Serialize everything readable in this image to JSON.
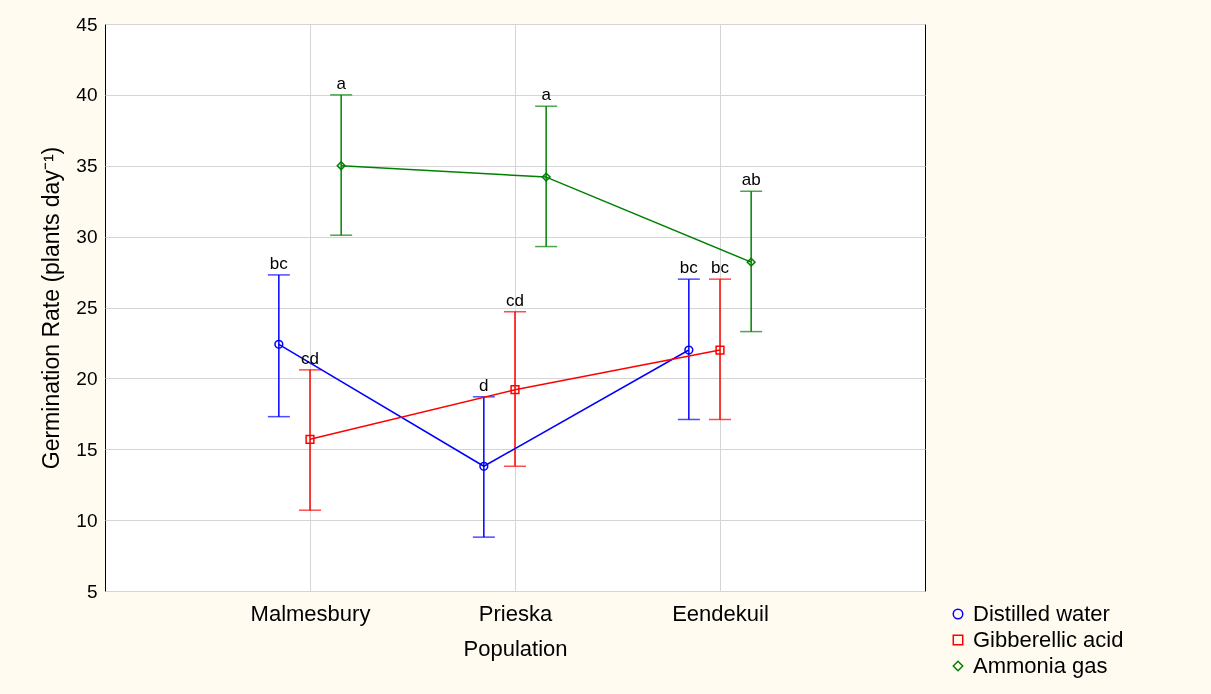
{
  "chart_data": {
    "type": "line",
    "xlabel": "Population",
    "ylabel": "Germination Rate (plants day⁻¹)",
    "categories": [
      "Malmesbury",
      "Prieska",
      "Eendekuil"
    ],
    "series": [
      {
        "name": "Distilled water",
        "color": "#0000ff",
        "marker": "circle",
        "values": [
          22.4,
          13.8,
          22.0
        ],
        "errors": [
          [
            17.3,
            27.3
          ],
          [
            8.8,
            18.7
          ],
          [
            17.1,
            27.0
          ]
        ]
      },
      {
        "name": "Gibberellic acid",
        "color": "#ff0000",
        "marker": "square",
        "values": [
          15.7,
          19.2,
          22.0
        ],
        "errors": [
          [
            10.7,
            20.6
          ],
          [
            13.8,
            24.7
          ],
          [
            17.1,
            27.0
          ]
        ]
      },
      {
        "name": "Ammonia gas",
        "color": "#008000",
        "marker": "diamond",
        "values": [
          35.0,
          34.2,
          28.2
        ],
        "errors": [
          [
            30.1,
            40.0
          ],
          [
            29.3,
            39.2
          ],
          [
            23.3,
            33.2
          ]
        ]
      }
    ],
    "annotations": [
      "bc",
      "d",
      "bc",
      "cd",
      "cd",
      "bc",
      "a",
      "a",
      "ab"
    ],
    "ylim": [
      5,
      45
    ],
    "yticks": [
      5,
      10,
      15,
      20,
      25,
      30,
      35,
      40,
      45
    ],
    "grid": true,
    "legend": "bottom right"
  }
}
